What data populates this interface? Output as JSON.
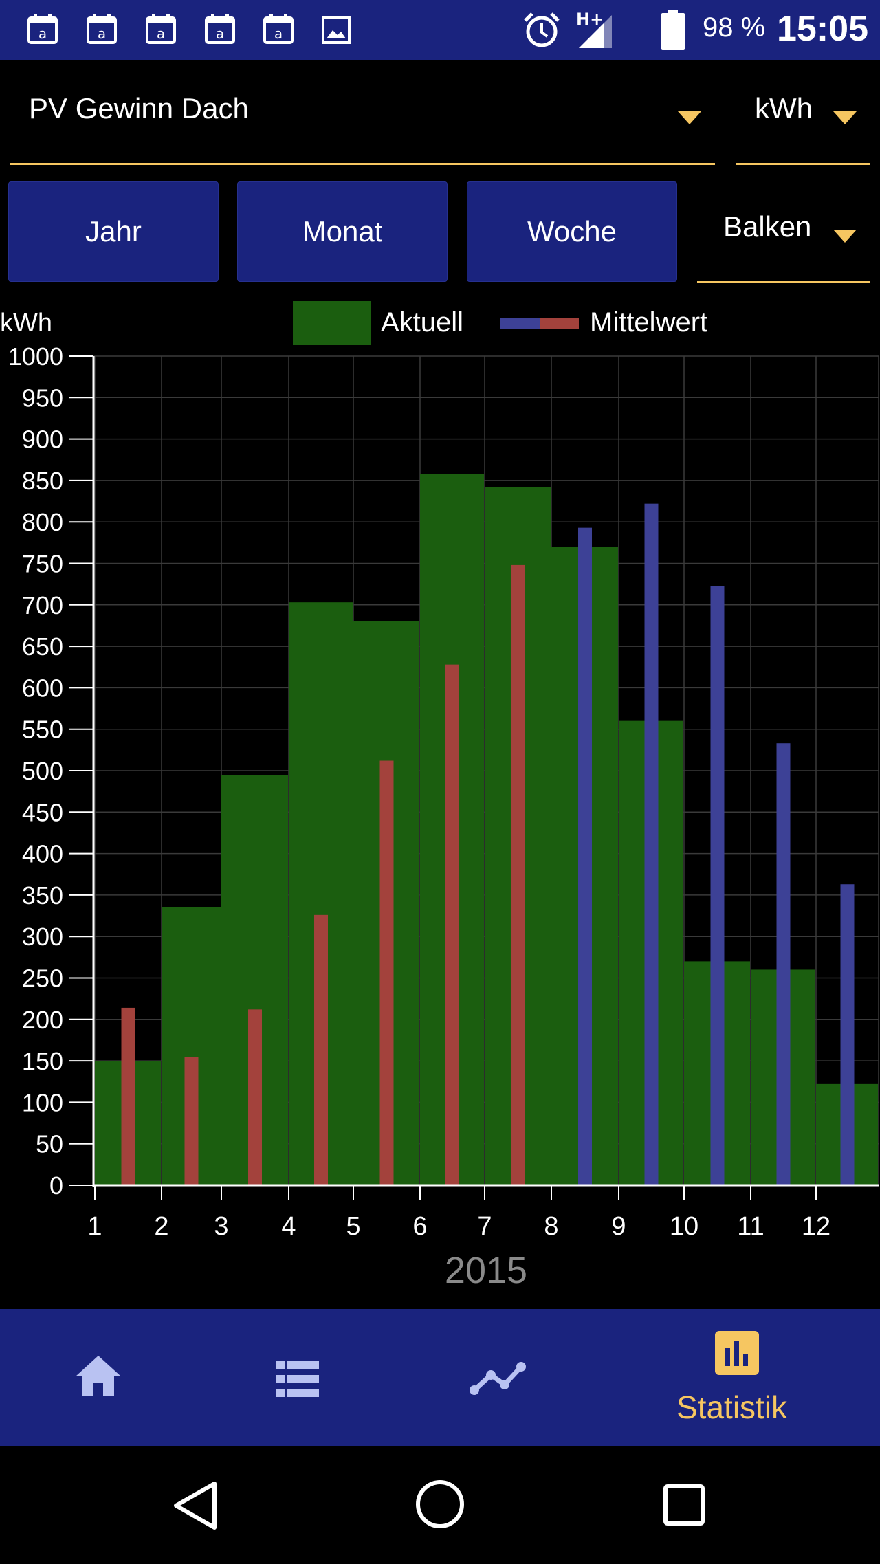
{
  "status_bar": {
    "notification_icons": [
      "calendar-icon",
      "calendar-icon",
      "calendar-icon",
      "calendar-icon",
      "calendar-icon",
      "image-icon"
    ],
    "network": "H+",
    "battery": "98 %",
    "time": "15:05"
  },
  "selector": {
    "source_value": "PV Gewinn Dach",
    "unit_value": "kWh",
    "chart_type_value": "Balken"
  },
  "period_buttons": {
    "year": "Jahr",
    "month": "Monat",
    "week": "Woche"
  },
  "colors": {
    "accent": "#f6c661",
    "bar_current": "#1b5e0f",
    "bar_avg_past": "#a3423c",
    "bar_avg_future": "#3d4196",
    "app_bar": "#1a237e"
  },
  "chart_data": {
    "type": "bar",
    "ylabel": "kWh",
    "xlabel": "2015",
    "ylim": [
      0,
      1000
    ],
    "yticks": [
      "0",
      "50",
      "100",
      "150",
      "200",
      "250",
      "300",
      "350",
      "400",
      "450",
      "500",
      "550",
      "600",
      "650",
      "700",
      "750",
      "800",
      "850",
      "900",
      "950",
      "1000"
    ],
    "categories": [
      "1",
      "2",
      "3",
      "4",
      "5",
      "6",
      "7",
      "8",
      "9",
      "10",
      "11",
      "12"
    ],
    "grid": true,
    "legend": "top",
    "series": [
      {
        "name": "Aktuell",
        "values": [
          150,
          335,
          495,
          703,
          680,
          858,
          842,
          770,
          560,
          270,
          260,
          122
        ]
      },
      {
        "name": "Mittelwert",
        "values": [
          214,
          155,
          212,
          326,
          512,
          628,
          748,
          793,
          822,
          723,
          533,
          363
        ],
        "future_from_index": 7
      }
    ]
  },
  "bottom_nav": {
    "items": [
      {
        "icon": "home-icon"
      },
      {
        "icon": "list-icon"
      },
      {
        "icon": "trend-line-icon"
      },
      {
        "icon": "statistics-icon",
        "label": "Statistik",
        "active": true
      }
    ]
  },
  "system_nav": [
    "back-icon",
    "home-circle-icon",
    "recents-icon"
  ]
}
